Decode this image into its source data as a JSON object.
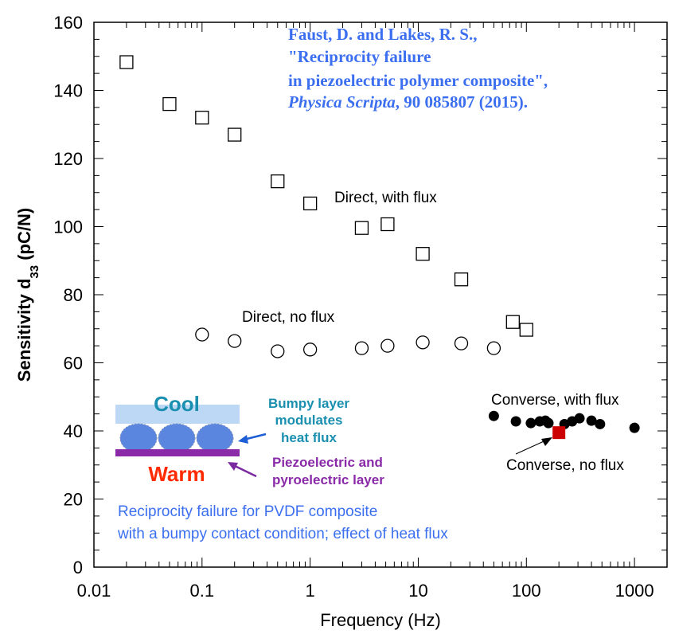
{
  "chart_data": {
    "type": "scatter",
    "title": "",
    "xlabel": "Frequency (Hz)",
    "ylabel_main": "Sensitivity d",
    "ylabel_sub": "33",
    "ylabel_unit": " (pC/N)",
    "xscale": "log",
    "xlim": [
      0.01,
      2000
    ],
    "ylim": [
      0,
      160
    ],
    "x_ticks": [
      0.01,
      0.1,
      1,
      10,
      100,
      1000
    ],
    "x_tick_labels": [
      "0.01",
      "0.1",
      "1",
      "10",
      "100",
      "1000"
    ],
    "y_ticks": [
      0,
      20,
      40,
      60,
      80,
      100,
      120,
      140,
      160
    ],
    "y_tick_labels": [
      "0",
      "20",
      "40",
      "60",
      "80",
      "100",
      "120",
      "140",
      "160"
    ],
    "grid": false,
    "series": [
      {
        "name": "Direct, with flux",
        "marker": "open-square",
        "color": "#000000",
        "x": [
          0.02,
          0.05,
          0.1,
          0.2,
          0.5,
          1,
          3,
          5.2,
          11,
          25,
          75,
          100
        ],
        "y": [
          148.3,
          136,
          132,
          127,
          113.3,
          106.8,
          99.6,
          100.7,
          92,
          84.5,
          72,
          69.7
        ]
      },
      {
        "name": "Direct, no flux",
        "marker": "open-circle",
        "color": "#000000",
        "x": [
          0.1,
          0.2,
          0.5,
          1,
          3,
          5.2,
          11,
          25,
          50
        ],
        "y": [
          68.3,
          66.4,
          63.4,
          63.9,
          64.3,
          65,
          66,
          65.7,
          64.3
        ]
      },
      {
        "name": "Converse, with flux",
        "marker": "filled-circle",
        "color": "#000000",
        "x": [
          50,
          80,
          110,
          133,
          150,
          160,
          225,
          265,
          310,
          400,
          480,
          1000
        ],
        "y": [
          44.4,
          42.8,
          42.3,
          42.8,
          43,
          42.3,
          42,
          42.8,
          43.7,
          43,
          42,
          40.9
        ]
      },
      {
        "name": "Converse, no flux",
        "marker": "filled-square",
        "color": "#cc0000",
        "x": [
          200
        ],
        "y": [
          39.5
        ]
      }
    ],
    "annotations": {
      "direct_with_flux": "Direct, with flux",
      "direct_no_flux": "Direct, no flux",
      "converse_with_flux": "Converse, with flux",
      "converse_no_flux": "Converse, no flux"
    },
    "citation": [
      "Faust, D. and Lakes, R. S.,",
      "\"Reciprocity failure",
      "in piezoelectric polymer composite\",",
      "Physica Scripta",
      ", 90 085807 (2015)."
    ],
    "note": [
      "Reciprocity failure for PVDF composite",
      "with a bumpy contact condition; effect of heat flux"
    ],
    "inset": {
      "cool": "Cool",
      "warm": "Warm",
      "bumpy_lines": [
        "Bumpy layer",
        "modulates",
        "heat flux"
      ],
      "piezo_lines": [
        "Piezoelectric and",
        "pyroelectric layer"
      ],
      "colors": {
        "cool_text": "#1a8fb0",
        "warm_text": "#ff2a00",
        "piezo": "#8a2aa8",
        "cool_layer": "#bcd8f4",
        "bumps": "#5b86e0",
        "arrow_blue": "#1f5fd6",
        "arrow_purple": "#7a2aa0"
      }
    }
  }
}
